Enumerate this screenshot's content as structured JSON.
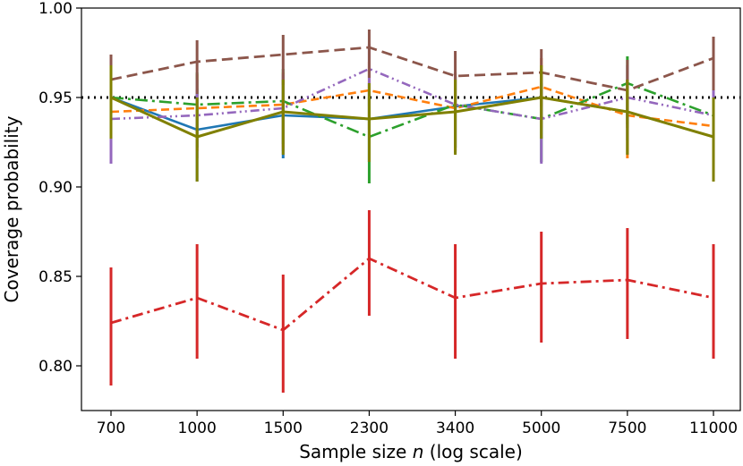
{
  "chart_data": {
    "type": "line",
    "title": "",
    "xlabel_prefix": "Sample size ",
    "xlabel_var": "n",
    "xlabel_suffix": " (log scale)",
    "ylabel": "Coverage probability",
    "categories": [
      "700",
      "1000",
      "1500",
      "2300",
      "3400",
      "5000",
      "7500",
      "11000"
    ],
    "ylim": [
      0.775,
      1.0
    ],
    "yticks": [
      0.8,
      0.85,
      0.9,
      0.95,
      1.0
    ],
    "ytick_labels": [
      "0.80",
      "0.85",
      "0.90",
      "0.95",
      "1.00"
    ],
    "reference_line": {
      "y": 0.95,
      "style": "dotted",
      "color": "#000000"
    },
    "grid": false,
    "legend": "none",
    "series": [
      {
        "name": "blue",
        "color": "#1f77b4",
        "dash": "",
        "width": 2.6,
        "values": [
          0.95,
          0.932,
          0.94,
          0.938,
          0.945,
          0.95,
          0.942,
          0.928
        ],
        "err_low": [
          0.926,
          0.903,
          0.916,
          0.914,
          0.919,
          0.927,
          0.918,
          0.903
        ],
        "err_high": [
          0.968,
          0.955,
          0.96,
          0.958,
          0.962,
          0.966,
          0.96,
          0.95
        ]
      },
      {
        "name": "orange",
        "color": "#ff7f0e",
        "dash": "9,5",
        "width": 2.6,
        "values": [
          0.942,
          0.944,
          0.946,
          0.954,
          0.944,
          0.956,
          0.94,
          0.934
        ],
        "err_low": [
          0.918,
          0.92,
          0.922,
          0.932,
          0.92,
          0.933,
          0.916,
          0.91
        ],
        "err_high": [
          0.962,
          0.963,
          0.964,
          0.97,
          0.963,
          0.972,
          0.96,
          0.955
        ]
      },
      {
        "name": "green",
        "color": "#2ca02c",
        "dash": "14,5,3,5",
        "width": 2.6,
        "values": [
          0.95,
          0.946,
          0.948,
          0.928,
          0.946,
          0.938,
          0.958,
          0.94
        ],
        "err_low": [
          0.926,
          0.922,
          0.924,
          0.902,
          0.922,
          0.914,
          0.935,
          0.916
        ],
        "err_high": [
          0.968,
          0.964,
          0.966,
          0.95,
          0.964,
          0.958,
          0.973,
          0.96
        ]
      },
      {
        "name": "purple",
        "color": "#9467bd",
        "dash": "10,4,2,4,2,4",
        "width": 2.6,
        "values": [
          0.938,
          0.94,
          0.944,
          0.966,
          0.946,
          0.938,
          0.95,
          0.94
        ],
        "err_low": [
          0.913,
          0.916,
          0.92,
          0.945,
          0.922,
          0.913,
          0.926,
          0.916
        ],
        "err_high": [
          0.958,
          0.96,
          0.963,
          0.98,
          0.964,
          0.958,
          0.968,
          0.96
        ]
      },
      {
        "name": "brown",
        "color": "#8c564b",
        "dash": "12,6",
        "width": 2.8,
        "values": [
          0.96,
          0.97,
          0.974,
          0.978,
          0.962,
          0.964,
          0.954,
          0.972
        ],
        "err_low": [
          0.94,
          0.952,
          0.957,
          0.961,
          0.942,
          0.945,
          0.933,
          0.954
        ],
        "err_high": [
          0.974,
          0.982,
          0.985,
          0.988,
          0.976,
          0.977,
          0.971,
          0.984
        ]
      },
      {
        "name": "olive",
        "color": "#808000",
        "dash": "",
        "width": 3,
        "values": [
          0.95,
          0.928,
          0.942,
          0.938,
          0.942,
          0.95,
          0.942,
          0.928
        ],
        "err_low": [
          0.927,
          0.903,
          0.918,
          0.914,
          0.918,
          0.927,
          0.918,
          0.903
        ],
        "err_high": [
          0.968,
          0.95,
          0.96,
          0.958,
          0.96,
          0.968,
          0.96,
          0.95
        ]
      },
      {
        "name": "red",
        "color": "#d62728",
        "dash": "12,5,3,5",
        "width": 2.8,
        "values": [
          0.824,
          0.838,
          0.82,
          0.86,
          0.838,
          0.846,
          0.848,
          0.838
        ],
        "err_low": [
          0.789,
          0.804,
          0.785,
          0.828,
          0.804,
          0.813,
          0.815,
          0.804
        ],
        "err_high": [
          0.855,
          0.868,
          0.851,
          0.887,
          0.868,
          0.875,
          0.877,
          0.868
        ]
      }
    ]
  }
}
